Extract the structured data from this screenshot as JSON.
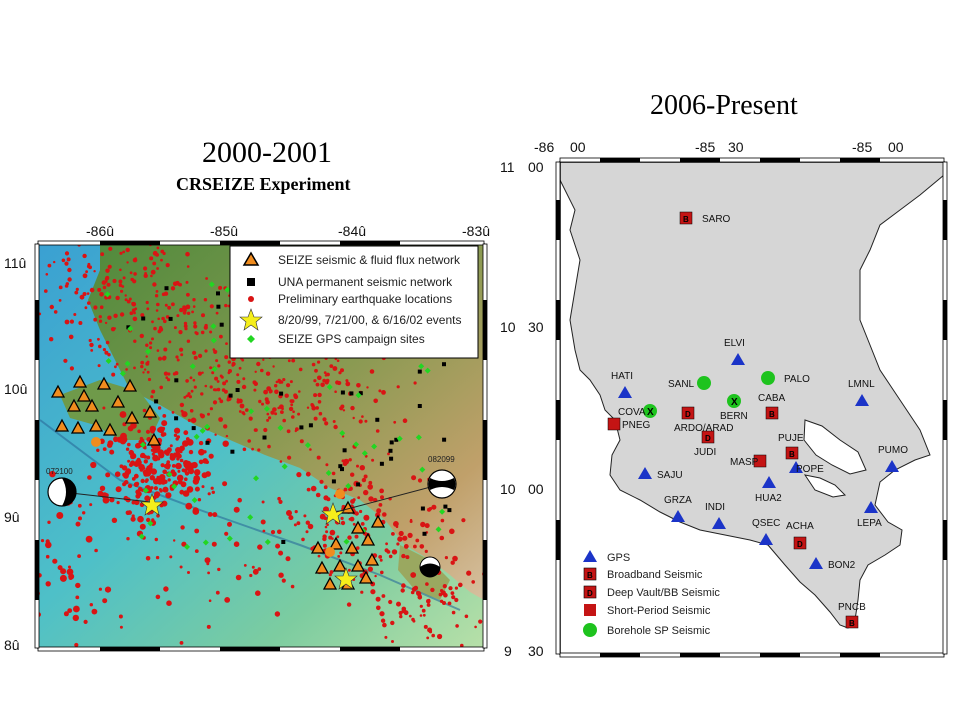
{
  "left_panel": {
    "title": "2000-2001",
    "subtitle": "CRSEIZE Experiment",
    "lon_ticks": [
      "-86û",
      "-85û",
      "-84û",
      "-83û"
    ],
    "lat_ticks": [
      "11û",
      "10û",
      "9û",
      "8û"
    ],
    "legend": [
      {
        "symbol": "orange-triangle",
        "label": "SEIZE seismic & fluid flux network"
      },
      {
        "symbol": "black-square",
        "label": "UNA permanent seismic network"
      },
      {
        "symbol": "red-dot",
        "label": "Preliminary earthquake locations"
      },
      {
        "symbol": "yellow-star",
        "label": "8/20/99, 7/21/00, & 6/16/02 events"
      },
      {
        "symbol": "green-diamond",
        "label": "SEIZE GPS campaign sites"
      }
    ],
    "beachball_labels": [
      "072100",
      "082099"
    ]
  },
  "right_panel": {
    "title": "2006-Present",
    "top_ticks": [
      "-86",
      "00",
      "-85",
      "30",
      "-85",
      "00"
    ],
    "left_ticks": [
      [
        "11",
        "00"
      ],
      [
        "10",
        "30"
      ],
      [
        "10",
        "00"
      ],
      [
        "9",
        "30"
      ]
    ],
    "stations": [
      {
        "name": "SARO",
        "type": "broadband"
      },
      {
        "name": "ELVI",
        "type": "gps"
      },
      {
        "name": "PALO",
        "type": "borehole"
      },
      {
        "name": "SANL",
        "type": "borehole"
      },
      {
        "name": "HATI",
        "type": "gps"
      },
      {
        "name": "LMNL",
        "type": "gps"
      },
      {
        "name": "COVA",
        "type": "borehole"
      },
      {
        "name": "ARDO/ARAD",
        "type": "deep-vault"
      },
      {
        "name": "BERN",
        "type": "borehole"
      },
      {
        "name": "CABA",
        "type": "broadband"
      },
      {
        "name": "PNEG",
        "type": "short-period"
      },
      {
        "name": "JUDI",
        "type": "deep-vault"
      },
      {
        "name": "PUJE",
        "type": "broadband"
      },
      {
        "name": "PUMO",
        "type": "gps"
      },
      {
        "name": "SAJU",
        "type": "gps"
      },
      {
        "name": "MASP",
        "type": "short-period"
      },
      {
        "name": "POPE",
        "type": "gps"
      },
      {
        "name": "HUA2",
        "type": "gps"
      },
      {
        "name": "GRZA",
        "type": "gps"
      },
      {
        "name": "INDI",
        "type": "gps"
      },
      {
        "name": "QSEC",
        "type": "gps"
      },
      {
        "name": "ACHA",
        "type": "deep-vault"
      },
      {
        "name": "LEPA",
        "type": "gps"
      },
      {
        "name": "BON2",
        "type": "gps"
      },
      {
        "name": "PNCB",
        "type": "broadband"
      }
    ],
    "legend": [
      {
        "symbol": "blue-triangle",
        "label": "GPS"
      },
      {
        "symbol": "broadband-square",
        "label": "Broadband Seismic"
      },
      {
        "symbol": "deepvault-square",
        "label": "Deep Vault/BB Seismic"
      },
      {
        "symbol": "red-square",
        "label": "Short-Period Seismic"
      },
      {
        "symbol": "green-circle",
        "label": "Borehole SP Seismic"
      }
    ]
  },
  "colors": {
    "quake": "#d91414",
    "seize": "#f08c1e",
    "gps_left": "#22d622",
    "star": "#f5ee1b",
    "gps_right": "#1b34c8",
    "station_sq": "#c41414",
    "borehole": "#1ec31e",
    "land_right": "#d6d6d6"
  }
}
